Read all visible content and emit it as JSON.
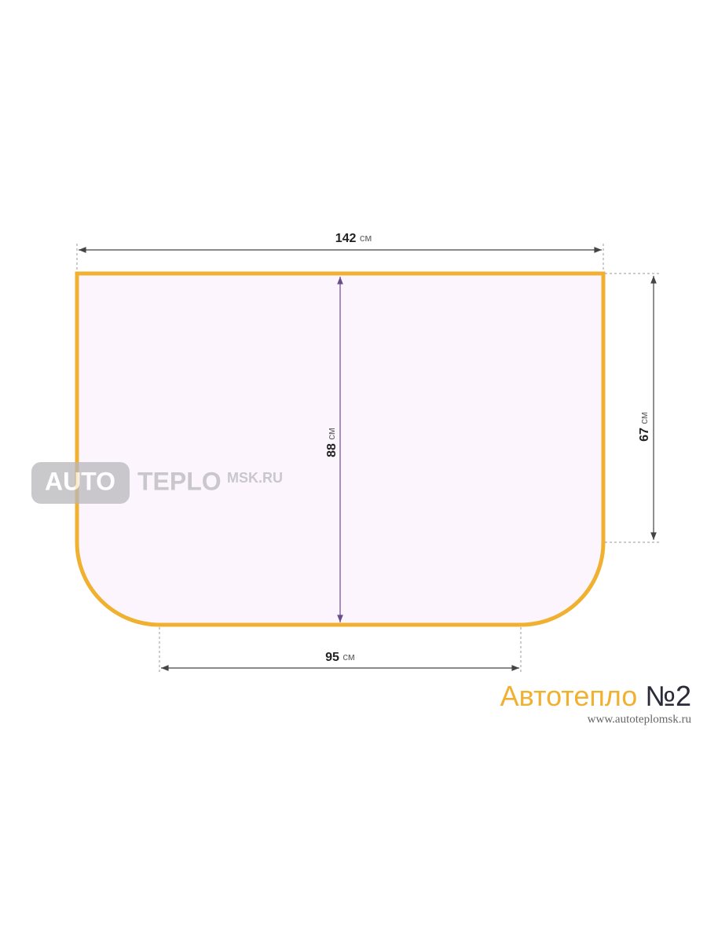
{
  "dimensions": {
    "top": {
      "value": "142",
      "unit": "см"
    },
    "height": {
      "value": "88",
      "unit": "см"
    },
    "side": {
      "value": "67",
      "unit": "см"
    },
    "bottom": {
      "value": "95",
      "unit": "см"
    }
  },
  "watermark": {
    "part1": "AUTO",
    "part2": "TEPLO",
    "part3": "MSK.RU"
  },
  "brand": {
    "name": "Автотепло",
    "number": "№2",
    "url": "www.autoteplomsk.ru"
  }
}
